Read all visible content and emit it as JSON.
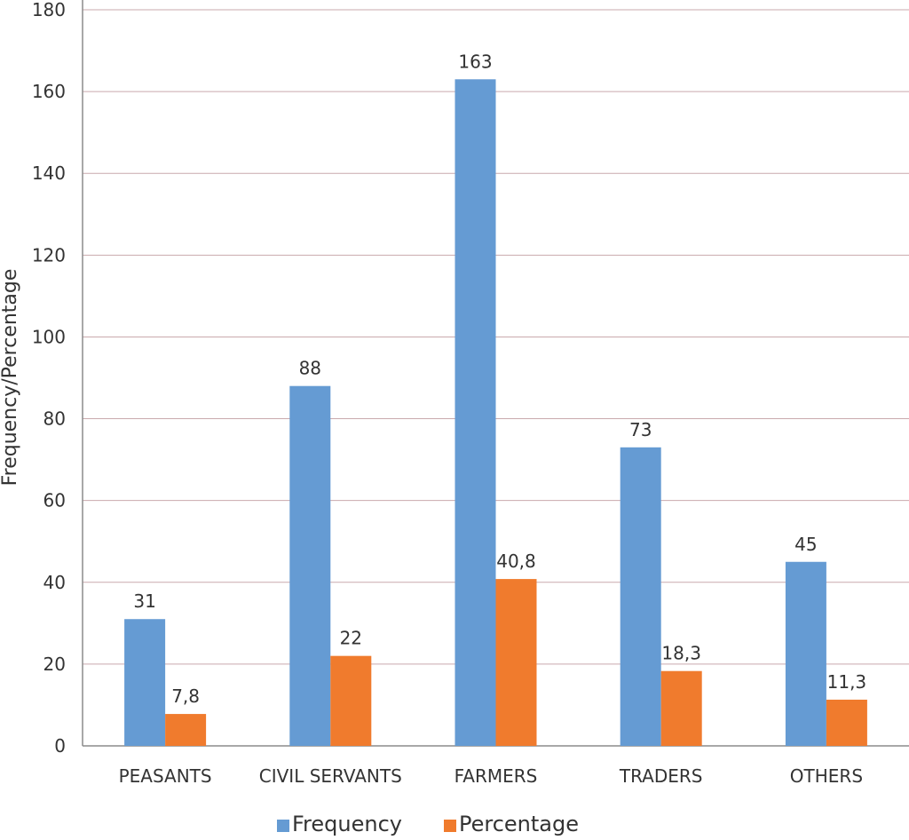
{
  "chart_data": {
    "type": "bar",
    "title": "",
    "ylabel": "Frequency/Percentage",
    "xlabel": "",
    "ylim": [
      0,
      180
    ],
    "yticks": [
      0,
      20,
      40,
      60,
      80,
      100,
      120,
      140,
      160,
      180
    ],
    "grid": true,
    "legend_position": "bottom",
    "categories": [
      "PEASANTS",
      "CIVIL SERVANTS",
      "FARMERS",
      "TRADERS",
      "OTHERS"
    ],
    "series": [
      {
        "name": "Frequency",
        "color": "#659BD3",
        "values": [
          31,
          88,
          163,
          73,
          45
        ],
        "labels": [
          "31",
          "88",
          "163",
          "73",
          "45"
        ]
      },
      {
        "name": "Percentage",
        "color": "#F07B2D",
        "values": [
          7.8,
          22,
          40.8,
          18.3,
          11.3
        ],
        "labels": [
          "7,8",
          "22",
          "40,8",
          "18,3",
          "11,3"
        ]
      }
    ]
  }
}
